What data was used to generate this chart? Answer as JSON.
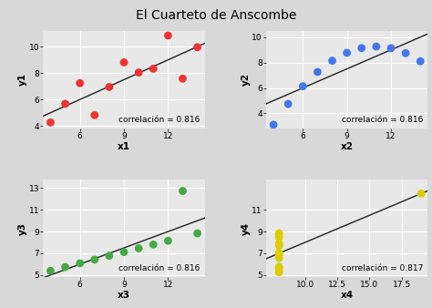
{
  "title": "El Cuarteto de Anscombe",
  "datasets": [
    {
      "x": [
        10,
        8,
        13,
        9,
        11,
        14,
        6,
        4,
        12,
        7,
        5
      ],
      "y": [
        8.04,
        6.95,
        7.58,
        8.81,
        8.33,
        9.96,
        7.24,
        4.26,
        10.84,
        4.82,
        5.68
      ],
      "color": "#EE3333",
      "xlabel": "x1",
      "ylabel": "y1",
      "corr": "correlación = 0.816",
      "xlim": [
        3.5,
        14.5
      ],
      "ylim": [
        3.8,
        11.2
      ],
      "xticks": [
        6,
        9,
        12
      ],
      "yticks": [
        4,
        6,
        8,
        10
      ]
    },
    {
      "x": [
        10,
        8,
        13,
        9,
        11,
        14,
        6,
        4,
        12,
        7,
        5
      ],
      "y": [
        9.14,
        8.14,
        8.74,
        8.77,
        9.26,
        8.1,
        6.13,
        3.1,
        9.13,
        7.26,
        4.74
      ],
      "color": "#4477EE",
      "xlabel": "x2",
      "ylabel": "y2",
      "corr": "correlación = 0.816",
      "xlim": [
        3.5,
        14.5
      ],
      "ylim": [
        2.8,
        10.5
      ],
      "xticks": [
        6,
        9,
        12
      ],
      "yticks": [
        4,
        6,
        8,
        10
      ]
    },
    {
      "x": [
        10,
        8,
        13,
        9,
        11,
        14,
        6,
        4,
        12,
        7,
        5
      ],
      "y": [
        7.46,
        6.77,
        12.74,
        7.11,
        7.81,
        8.84,
        6.08,
        5.39,
        8.15,
        6.42,
        5.73
      ],
      "color": "#44AA44",
      "xlabel": "x3",
      "ylabel": "y3",
      "corr": "correlación = 0.816",
      "xlim": [
        3.5,
        14.5
      ],
      "ylim": [
        4.8,
        13.8
      ],
      "xticks": [
        6,
        9,
        12
      ],
      "yticks": [
        5,
        7,
        9,
        11,
        13
      ]
    },
    {
      "x": [
        8,
        8,
        8,
        8,
        8,
        8,
        8,
        19,
        8,
        8,
        8
      ],
      "y": [
        6.58,
        5.76,
        7.71,
        8.84,
        8.47,
        7.04,
        5.25,
        12.5,
        5.56,
        7.91,
        6.89
      ],
      "color": "#DDCC00",
      "xlabel": "x4",
      "ylabel": "y4",
      "corr": "correlación = 0.817",
      "xlim": [
        7.0,
        19.5
      ],
      "ylim": [
        4.8,
        13.8
      ],
      "xticks": [
        10.0,
        12.5,
        15.0,
        17.5
      ],
      "yticks": [
        5,
        7,
        9,
        11
      ]
    }
  ],
  "panel_bg": "#E8E8E8",
  "fig_bg": "#D8D8D8",
  "grid_color": "#FFFFFF",
  "title_fontsize": 10,
  "label_fontsize": 7.5,
  "tick_fontsize": 6.5,
  "corr_fontsize": 6.5,
  "dot_size": 40,
  "line_color": "#222222",
  "line_width": 1.0
}
